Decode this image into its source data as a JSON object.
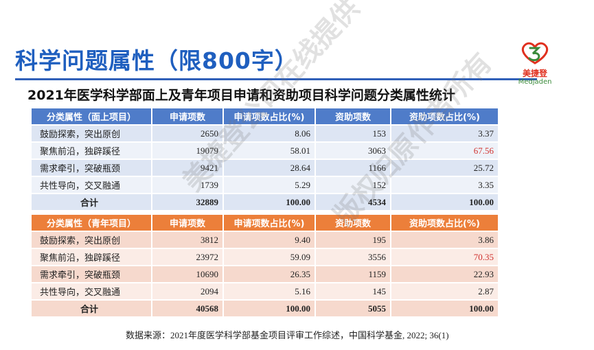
{
  "title": "科学问题属性（限800字）",
  "logo": {
    "cn": "美捷登",
    "en": "Medjaden",
    "colors": {
      "red": "#e0301e",
      "green": "#3a8a3a"
    }
  },
  "subtitle": "2021年医学科学部面上及青年项目申请和资助项目科学问题分类属性统计",
  "table_general": {
    "headers": [
      "分类属性（面上项目）",
      "申请项数",
      "申请项数占比(%)",
      "资助项数",
      "资助项数占比(%)"
    ],
    "rows": [
      {
        "name": "鼓励探索，突出原创",
        "apply": "2650",
        "apply_pct": "8.06",
        "fund": "153",
        "fund_pct": "3.37"
      },
      {
        "name": "聚焦前沿，独辟蹊径",
        "apply": "19079",
        "apply_pct": "58.01",
        "fund": "3063",
        "fund_pct": "67.56"
      },
      {
        "name": "需求牵引，突破瓶颈",
        "apply": "9421",
        "apply_pct": "28.64",
        "fund": "1166",
        "fund_pct": "25.72"
      },
      {
        "name": "共性导向，交叉融通",
        "apply": "1739",
        "apply_pct": "5.29",
        "fund": "152",
        "fund_pct": "3.35"
      }
    ],
    "total": {
      "name": "合计",
      "apply": "32889",
      "apply_pct": "100.00",
      "fund": "4534",
      "fund_pct": "100.00"
    }
  },
  "table_youth": {
    "headers": [
      "分类属性（青年项目）",
      "申请项数",
      "申请项数占比(%)",
      "资助项数",
      "资助项数占比(%)"
    ],
    "rows": [
      {
        "name": "鼓励探索，突出原创",
        "apply": "3812",
        "apply_pct": "9.40",
        "fund": "195",
        "fund_pct": "3.86"
      },
      {
        "name": "聚焦前沿，独辟蹊径",
        "apply": "23972",
        "apply_pct": "59.09",
        "fund": "3556",
        "fund_pct": "70.35"
      },
      {
        "name": "需求牵引，突破瓶颈",
        "apply": "10690",
        "apply_pct": "26.35",
        "fund": "1159",
        "fund_pct": "22.93"
      },
      {
        "name": "共性导向，交叉融通",
        "apply": "2094",
        "apply_pct": "5.16",
        "fund": "145",
        "fund_pct": "2.87"
      }
    ],
    "total": {
      "name": "合计",
      "apply": "40568",
      "apply_pct": "100.00",
      "fund": "5055",
      "fund_pct": "100.00"
    }
  },
  "source": "数据来源：2021年度医学科学部基金项目评审工作综述，中国科学基金, 2022; 36(1)",
  "watermark": {
    "line1": "美捷登公司在线提供",
    "line2": "版权归原作者所有"
  },
  "colors": {
    "title": "#1f5fbf",
    "blue_header": "#4f7cc9",
    "orange_header": "#ec7f3a",
    "highlight": "#d0312d"
  }
}
